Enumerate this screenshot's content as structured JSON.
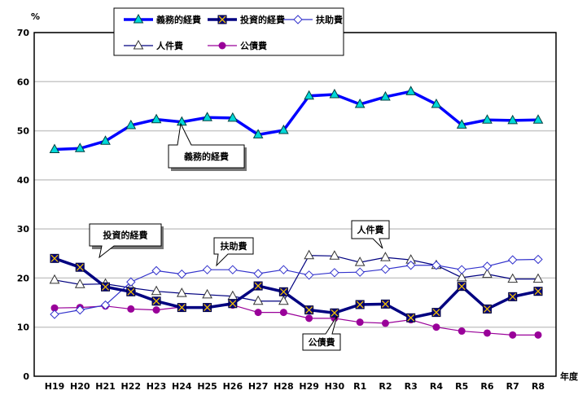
{
  "chart_data": {
    "type": "line",
    "yunit": "%",
    "xlabel": "年度",
    "ylim": [
      0,
      70
    ],
    "yticks": [
      0,
      10,
      20,
      30,
      40,
      50,
      60,
      70
    ],
    "grid": true,
    "legend_placement": "top",
    "categories": [
      "H19",
      "H20",
      "H21",
      "H22",
      "H23",
      "H24",
      "H25",
      "H26",
      "H27",
      "H28",
      "H29",
      "H30",
      "R1",
      "R2",
      "R3",
      "R4",
      "R5",
      "R6",
      "R7",
      "R8"
    ],
    "series": [
      {
        "name": "義務的経費",
        "color": "#0000ff",
        "marker": "triangle-filled",
        "values": [
          46.2,
          46.4,
          47.9,
          51.1,
          52.3,
          51.8,
          52.7,
          52.6,
          49.2,
          50.1,
          57.1,
          57.4,
          55.4,
          56.9,
          58.0,
          55.4,
          51.2,
          52.2,
          52.1,
          52.2
        ]
      },
      {
        "name": "投資的経費",
        "color": "#000080",
        "marker": "square-x",
        "values": [
          24.0,
          22.2,
          18.2,
          17.2,
          15.3,
          14.0,
          14.0,
          14.8,
          18.4,
          17.2,
          13.5,
          12.9,
          14.6,
          14.7,
          11.9,
          13.0,
          18.3,
          13.7,
          16.2,
          17.3
        ]
      },
      {
        "name": "扶助費",
        "color": "#3333cc",
        "marker": "diamond-open",
        "values": [
          12.6,
          13.5,
          14.5,
          19.2,
          21.5,
          20.8,
          21.7,
          21.7,
          20.9,
          21.7,
          20.6,
          21.1,
          21.2,
          21.8,
          22.6,
          22.6,
          21.7,
          22.4,
          23.7,
          23.8
        ]
      },
      {
        "name": "人件費",
        "color": "#000080",
        "marker": "triangle-open",
        "values": [
          19.6,
          18.7,
          18.8,
          18.0,
          17.3,
          16.9,
          16.6,
          16.3,
          15.3,
          15.3,
          24.6,
          24.5,
          23.2,
          24.2,
          23.7,
          22.6,
          20.1,
          20.8,
          19.8,
          19.8
        ]
      },
      {
        "name": "公債費",
        "color": "#990099",
        "marker": "circle-filled",
        "values": [
          13.9,
          14.0,
          14.3,
          13.7,
          13.5,
          14.1,
          14.1,
          14.5,
          13.0,
          13.0,
          11.8,
          11.8,
          11.0,
          10.8,
          11.5,
          10.0,
          9.2,
          8.8,
          8.4,
          8.4
        ]
      }
    ],
    "annotations": [
      "義務的経費",
      "投資的経費",
      "扶助費",
      "人件費",
      "公債費"
    ]
  }
}
